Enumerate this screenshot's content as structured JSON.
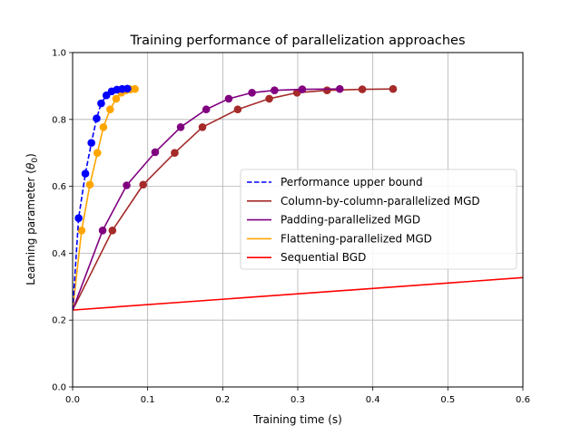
{
  "chart_data": {
    "type": "line",
    "title": "Training performance of parallelization approaches",
    "xlabel": "Training time (s)",
    "ylabel_prefix": "Learning parameter (",
    "ylabel_symbol": "θ",
    "ylabel_subscript": "0",
    "ylabel_suffix": ")",
    "xlim": [
      0,
      0.6
    ],
    "ylim": [
      0,
      1.0
    ],
    "xticks": [
      0.0,
      0.1,
      0.2,
      0.3,
      0.4,
      0.5,
      0.6
    ],
    "xtick_labels": [
      "0.0",
      "0.1",
      "0.2",
      "0.3",
      "0.4",
      "0.5",
      "0.6"
    ],
    "yticks": [
      0.0,
      0.2,
      0.4,
      0.6,
      0.8,
      1.0
    ],
    "ytick_labels": [
      "0.0",
      "0.2",
      "0.4",
      "0.6",
      "0.8",
      "1.0"
    ],
    "grid": true,
    "legend_position": "center-right",
    "series": [
      {
        "name": "Performance upper bound",
        "color": "#0000ff",
        "dashed": true,
        "markers": true,
        "x": [
          0.0,
          0.008,
          0.017,
          0.025,
          0.032,
          0.038,
          0.045,
          0.052,
          0.059,
          0.066,
          0.073
        ],
        "y": [
          0.23,
          0.505,
          0.638,
          0.73,
          0.803,
          0.848,
          0.872,
          0.884,
          0.889,
          0.891,
          0.892
        ]
      },
      {
        "name": "Column-by-column-parallelized MGD",
        "color": "#a52a2a",
        "dashed": false,
        "markers": true,
        "x": [
          0.0,
          0.053,
          0.094,
          0.136,
          0.173,
          0.22,
          0.262,
          0.299,
          0.339,
          0.386,
          0.427
        ],
        "y": [
          0.23,
          0.468,
          0.605,
          0.7,
          0.777,
          0.83,
          0.862,
          0.88,
          0.887,
          0.89,
          0.891
        ]
      },
      {
        "name": "Padding-parallelized MGD",
        "color": "#800080",
        "dashed": false,
        "markers": true,
        "x": [
          0.0,
          0.04,
          0.072,
          0.11,
          0.144,
          0.178,
          0.208,
          0.239,
          0.269,
          0.306,
          0.356
        ],
        "y": [
          0.23,
          0.468,
          0.603,
          0.702,
          0.777,
          0.83,
          0.862,
          0.88,
          0.887,
          0.89,
          0.891
        ]
      },
      {
        "name": "Flattening-parallelized MGD",
        "color": "#ffa500",
        "dashed": false,
        "markers": true,
        "x": [
          0.0,
          0.012,
          0.023,
          0.033,
          0.041,
          0.05,
          0.058,
          0.065,
          0.071,
          0.077,
          0.083
        ],
        "y": [
          0.23,
          0.468,
          0.605,
          0.7,
          0.777,
          0.83,
          0.862,
          0.88,
          0.887,
          0.89,
          0.891
        ]
      },
      {
        "name": "Sequential BGD",
        "color": "#ff0000",
        "dashed": false,
        "markers": false,
        "x": [
          0.0,
          0.6
        ],
        "y": [
          0.23,
          0.327
        ]
      }
    ],
    "legend_order": [
      0,
      1,
      2,
      3,
      4
    ]
  }
}
